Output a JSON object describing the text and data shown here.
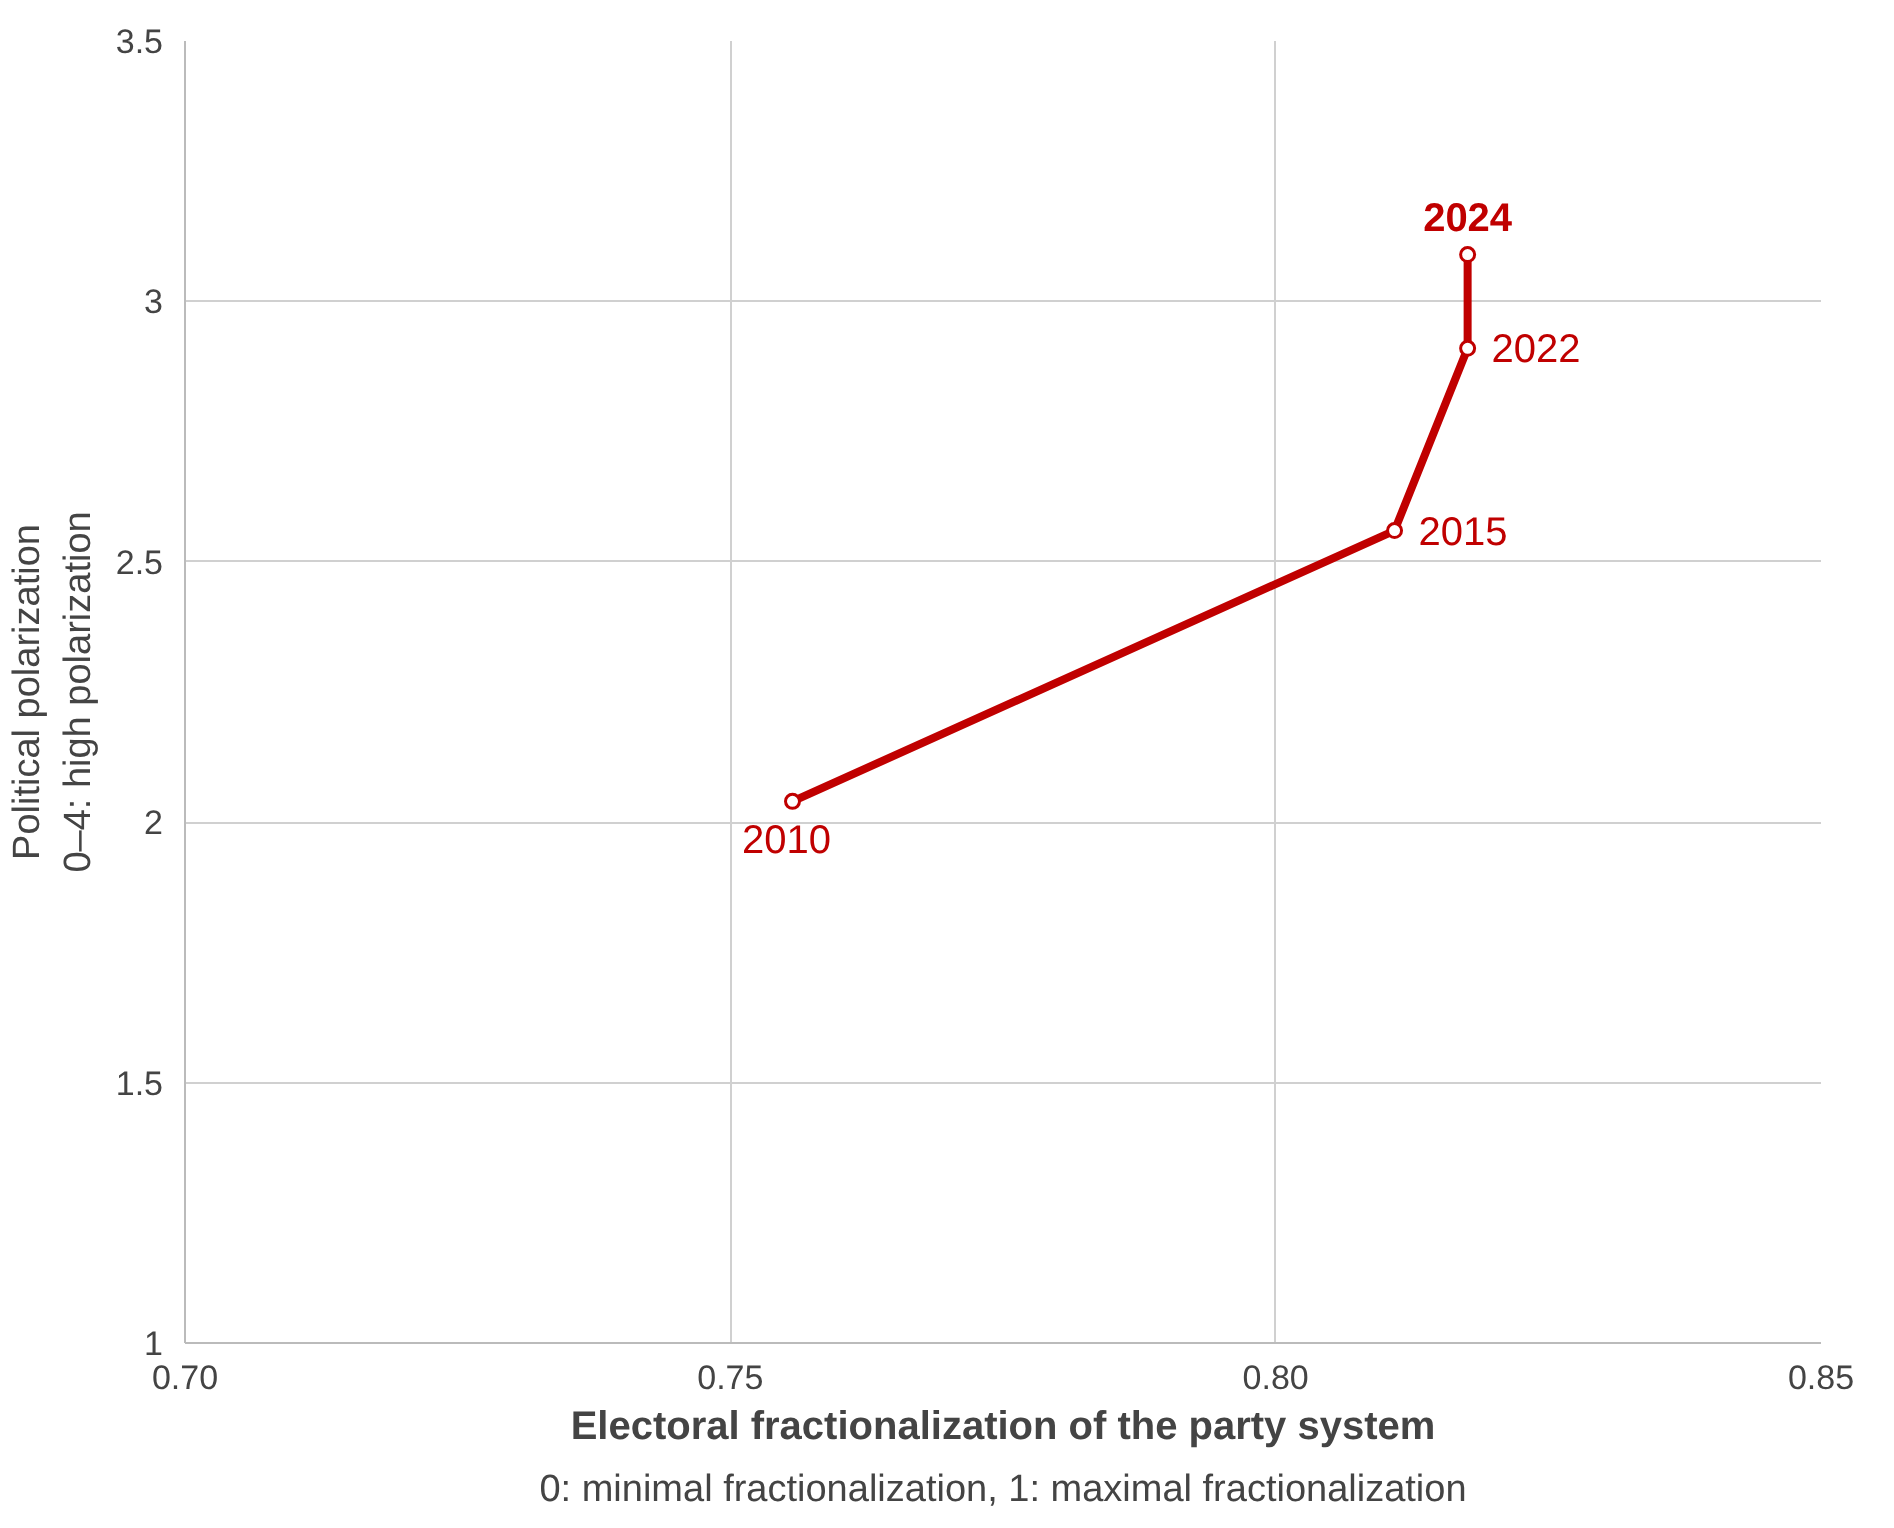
{
  "chart_data": {
    "type": "line",
    "xlabel": "Electoral fractionalization of the party system\n0: minimal fractionalization, 1: maximal fractionalization",
    "ylabel": "Political polarization\n0–4: high polarization",
    "x": [
      0.7557,
      0.8109,
      0.8176,
      0.8176
    ],
    "series": [
      {
        "color": "#c00000",
        "values": [
          2.04,
          2.56,
          2.91,
          3.09
        ]
      }
    ],
    "xlim": [
      0.7,
      0.85
    ],
    "xticks": [
      {
        "value": 0.7,
        "label": "0.70"
      },
      {
        "value": 0.75,
        "label": "0.75"
      },
      {
        "value": 0.8,
        "label": "0.80"
      },
      {
        "value": 0.85,
        "label": "0.85"
      }
    ],
    "ylim": [
      1,
      3.5
    ],
    "yticks": [
      1,
      1.5,
      2,
      2.5,
      3,
      3.5
    ],
    "grid": true,
    "marker": "circle",
    "line_style": "solid",
    "annotations": [
      {
        "text": "2010",
        "x": 0.7557,
        "y": 2.04
      },
      {
        "text": "2015",
        "x": 0.8109,
        "y": 2.56
      },
      {
        "text": "2022",
        "x": 0.8176,
        "y": 2.91
      },
      {
        "text": "2024",
        "x": 0.8176,
        "y": 3.09
      }
    ]
  }
}
